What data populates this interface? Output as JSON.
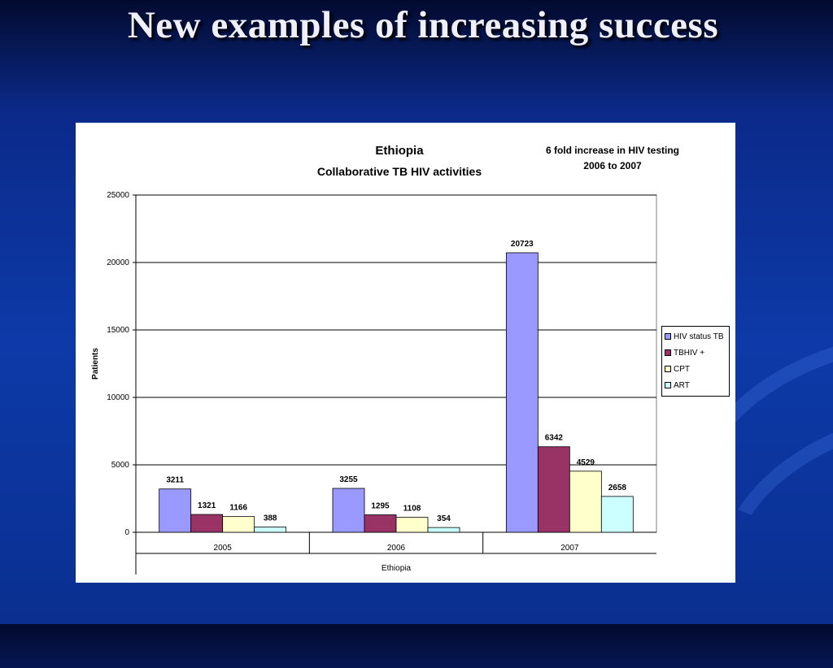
{
  "slide": {
    "title": "New examples of increasing success"
  },
  "colors": {
    "background_top": "#020a2e",
    "background_bottom": "#0d3aa8",
    "title_text": "#eef0ff"
  },
  "chart_data": {
    "type": "bar",
    "title": "Ethiopia",
    "subtitle": "Collaborative TB HIV activities",
    "annotation_lines": [
      "6 fold increase in HIV testing",
      "2006 to 2007"
    ],
    "xlabel": "Ethiopia",
    "ylabel": "Patients",
    "categories": [
      "2005",
      "2006",
      "2007"
    ],
    "ylim": [
      0,
      25000
    ],
    "yticks": [
      0,
      5000,
      10000,
      15000,
      20000,
      25000
    ],
    "grid": true,
    "legend_position": "right",
    "series": [
      {
        "name": "HIV status TB",
        "color": "#9999ff",
        "values": [
          3211,
          3255,
          20723
        ]
      },
      {
        "name": "TBHIV +",
        "color": "#993366",
        "values": [
          1321,
          1295,
          6342
        ]
      },
      {
        "name": "CPT",
        "color": "#ffffcc",
        "values": [
          1166,
          1108,
          4529
        ]
      },
      {
        "name": "ART",
        "color": "#ccffff",
        "values": [
          388,
          354,
          2658
        ]
      }
    ]
  }
}
